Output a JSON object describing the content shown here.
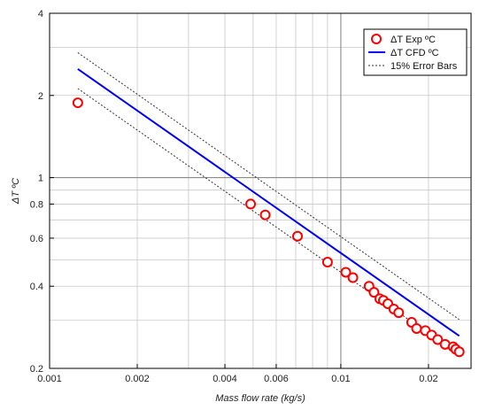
{
  "chart_data": {
    "type": "scatter",
    "x_scale": "log",
    "y_scale": "log",
    "xlabel": "Mass flow rate (kg/s)",
    "ylabel": "ΔT ºC",
    "xlim": [
      0.001,
      0.028
    ],
    "ylim": [
      0.2,
      4
    ],
    "x_ticks": [
      {
        "value": 0.001,
        "label": "0.001"
      },
      {
        "value": 0.002,
        "label": "0.002"
      },
      {
        "value": 0.004,
        "label": "0.004"
      },
      {
        "value": 0.006,
        "label": "0.006"
      },
      {
        "value": 0.01,
        "label": "0.01"
      },
      {
        "value": 0.02,
        "label": "0.02"
      }
    ],
    "y_ticks": [
      {
        "value": 0.2,
        "label": "0.2"
      },
      {
        "value": 0.4,
        "label": "0.4"
      },
      {
        "value": 0.6,
        "label": "0.6"
      },
      {
        "value": 0.8,
        "label": "0.8"
      },
      {
        "value": 1,
        "label": "1"
      },
      {
        "value": 2,
        "label": "2"
      },
      {
        "value": 4,
        "label": "4"
      }
    ],
    "grid": true,
    "legend_position": "top-right",
    "colors": {
      "exp": "#ff0000",
      "cfd": "#0000ff",
      "error": "#333333",
      "grid": "#c8c8c8",
      "reference": "#808080"
    },
    "series": [
      {
        "name": "ΔT Exp  ºC",
        "kind": "markers",
        "x": [
          0.00125,
          0.0049,
          0.0055,
          0.0071,
          0.009,
          0.0104,
          0.011,
          0.0125,
          0.013,
          0.0136,
          0.014,
          0.0145,
          0.0152,
          0.0158,
          0.0175,
          0.0182,
          0.0195,
          0.0205,
          0.0215,
          0.0228,
          0.0243,
          0.0248,
          0.0255
        ],
        "y": [
          1.88,
          0.8,
          0.73,
          0.61,
          0.49,
          0.45,
          0.43,
          0.4,
          0.38,
          0.36,
          0.355,
          0.345,
          0.33,
          0.32,
          0.295,
          0.28,
          0.275,
          0.265,
          0.255,
          0.245,
          0.24,
          0.235,
          0.23
        ]
      },
      {
        "name": "ΔT CFD  ºC",
        "kind": "line",
        "x": [
          0.00125,
          0.0255
        ],
        "y": [
          2.5,
          0.263
        ]
      },
      {
        "name": "15% Error Bars",
        "kind": "dashed-pair",
        "x": [
          0.00125,
          0.0255
        ],
        "upper": [
          2.87,
          0.302
        ],
        "lower": [
          2.12,
          0.224
        ]
      }
    ],
    "reference_lines": {
      "x": 0.01,
      "y": 1
    }
  }
}
